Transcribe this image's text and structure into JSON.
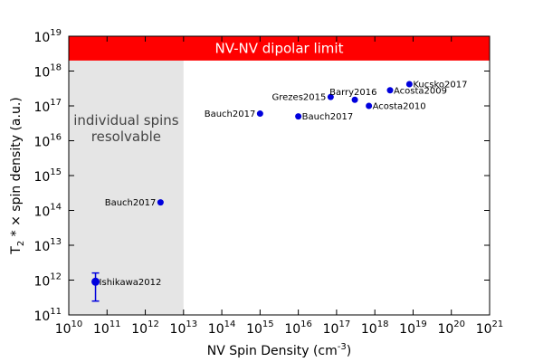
{
  "chart_data": {
    "type": "scatter",
    "xlabel_pre": "NV Spin Density (cm",
    "xlabel_sup": "-3",
    "xlabel_post": ")",
    "ylabel_pre": "T",
    "ylabel_sub": "2",
    "ylabel_post": " * × spin density (a.u.)",
    "x_log": true,
    "y_log": true,
    "xlim": [
      10000000000.0,
      1e+21
    ],
    "ylim": [
      100000000000.0,
      1e+19
    ],
    "x_ticks": [
      10,
      11,
      12,
      13,
      14,
      15,
      16,
      17,
      18,
      19,
      20,
      21
    ],
    "y_ticks": [
      11,
      12,
      13,
      14,
      15,
      16,
      17,
      18,
      19
    ],
    "tick_base": "10",
    "colors": {
      "points": "#0000dd",
      "limit_band": "#ff0000",
      "shaded_region": "#e5e5e5"
    },
    "limit_band": {
      "label": "NV-NV dipolar limit",
      "y_from": 2e+18,
      "y_to": 1e+19
    },
    "shaded_region": {
      "line1": "individual spins",
      "line2": "resolvable",
      "x_from": 10000000000.0,
      "x_to": 10000000000000.0
    },
    "points": [
      {
        "label": "Ishikawa2012",
        "x": 50000000000.0,
        "y": 900000000000.0,
        "yerr": [
          250000000000.0,
          1600000000000.0
        ],
        "label_side": "right"
      },
      {
        "label": "Bauch2017",
        "x": 2500000000000.0,
        "y": 170000000000000.0,
        "label_side": "left"
      },
      {
        "label": "Bauch2017",
        "x": 1000000000000000.0,
        "y": 6e+16,
        "label_side": "left"
      },
      {
        "label": "Bauch2017",
        "x": 1e+16,
        "y": 5e+16,
        "label_side": "right"
      },
      {
        "label": "Grezes2015",
        "x": 7e+16,
        "y": 1.8e+17,
        "label_side": "left"
      },
      {
        "label": "Barry2016",
        "x": 3e+17,
        "y": 1.5e+17,
        "label_side": "above"
      },
      {
        "label": "Acosta2010",
        "x": 7e+17,
        "y": 1e+17,
        "label_side": "right"
      },
      {
        "label": "Acosta2009",
        "x": 2.5e+18,
        "y": 2.8e+17,
        "label_side": "right"
      },
      {
        "label": "Kucsko2017",
        "x": 8e+18,
        "y": 4.2e+17,
        "label_side": "right"
      }
    ]
  }
}
